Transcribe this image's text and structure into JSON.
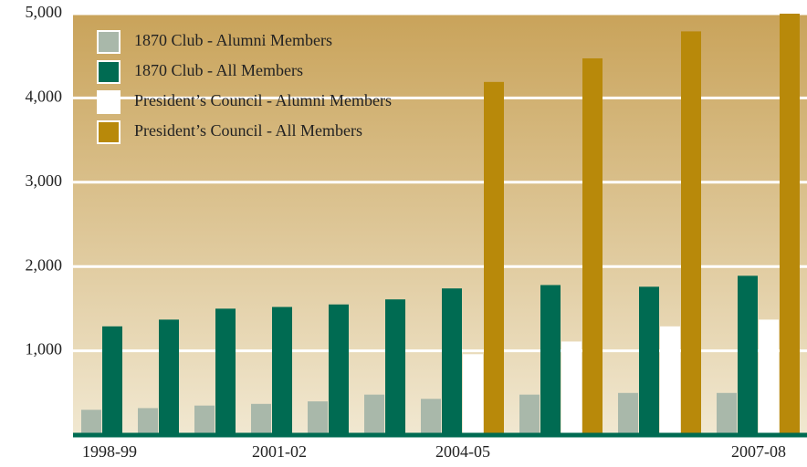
{
  "chart_data": {
    "type": "bar",
    "categories": [
      "1998-99",
      null,
      null,
      "2001-02",
      null,
      null,
      "2004-05",
      null,
      null,
      "2007-08"
    ],
    "series": [
      {
        "name": "1870 Club - Alumni Members",
        "color": "#a9b8aa",
        "values": [
          300,
          320,
          350,
          370,
          400,
          480,
          430,
          480,
          500,
          500
        ]
      },
      {
        "name": "1870 Club - All Members",
        "color": "#006b52",
        "values": [
          1290,
          1370,
          1500,
          1520,
          1550,
          1610,
          1740,
          1780,
          1760,
          1890
        ]
      },
      {
        "name": "President’s Council - Alumni Members",
        "color": "#ffffff",
        "values": [
          null,
          null,
          null,
          null,
          null,
          null,
          960,
          1110,
          1290,
          1370
        ]
      },
      {
        "name": "President’s Council - All Members",
        "color": "#b8890a",
        "values": [
          null,
          null,
          null,
          null,
          null,
          null,
          4190,
          4470,
          4790,
          5000
        ]
      }
    ],
    "ylim": [
      0,
      5000
    ],
    "yticks": [
      {
        "value": 1000,
        "label": "1,000"
      },
      {
        "value": 2000,
        "label": "2,000"
      },
      {
        "value": 3000,
        "label": "3,000"
      },
      {
        "value": 4000,
        "label": "4,000"
      },
      {
        "value": 5000,
        "label": "5,000"
      }
    ],
    "grid": true,
    "legend": "top-left"
  }
}
